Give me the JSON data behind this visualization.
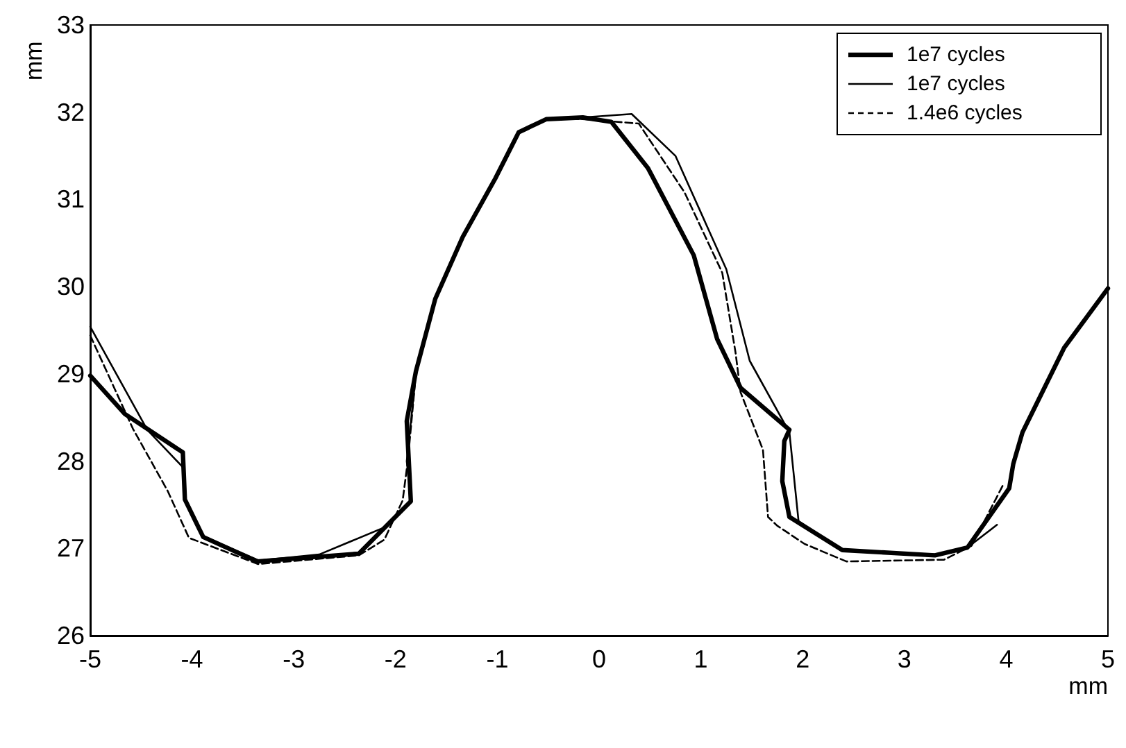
{
  "chart_data": {
    "type": "line",
    "xlabel": "mm",
    "ylabel": "mm",
    "xlim": [
      -5,
      5
    ],
    "xticks": [
      -5,
      -4,
      -3,
      -2,
      -1,
      0,
      1,
      2,
      3,
      4,
      5
    ],
    "ylim": [
      26,
      33
    ],
    "yticks": [
      26,
      27,
      28,
      29,
      30,
      31,
      32,
      33
    ],
    "grid": false,
    "legend": "top right",
    "marker": "none",
    "series": [
      {
        "name": "1e7 cycles",
        "color": "#000000",
        "line_style": "solid",
        "x": [
          -5,
          -4.66,
          -4.09,
          -4.07,
          -3.89,
          -3.36,
          -2.36,
          -1.85,
          -1.89,
          -1.8,
          -1.61,
          -1.34,
          -1.02,
          -0.79,
          -0.52,
          -0.16,
          0.12,
          0.48,
          0.93,
          1.16,
          1.39,
          1.87,
          1.82,
          1.8,
          1.87,
          2.39,
          3.3,
          3.62,
          4.03,
          4.07,
          4.16,
          4.57,
          5
        ],
        "values": [
          28.98,
          28.54,
          28.1,
          27.56,
          27.13,
          26.85,
          26.94,
          27.54,
          28.46,
          29.03,
          29.86,
          30.57,
          31.24,
          31.77,
          31.92,
          31.94,
          31.89,
          31.36,
          30.36,
          29.4,
          28.84,
          28.36,
          28.23,
          27.77,
          27.36,
          26.98,
          26.92,
          27.01,
          27.69,
          27.97,
          28.33,
          29.3,
          29.98
        ]
      },
      {
        "name": "1e7 cycles",
        "color": "#000000",
        "line_style": "solid",
        "x": [
          -5,
          -4.44,
          -4.09,
          -4.07,
          -3.89,
          -3.34,
          -2.75,
          -2.11,
          -1.85,
          -1.89,
          -1.8,
          -1.61,
          -1.34,
          -1.02,
          -0.79,
          -0.52,
          -0.16,
          0.32,
          0.75,
          1.25,
          1.48,
          1.87,
          1.96,
          2.39,
          3.3,
          3.62,
          3.91
        ],
        "values": [
          29.54,
          28.36,
          27.93,
          27.58,
          27.14,
          26.86,
          26.93,
          27.24,
          27.55,
          28.0,
          29.0,
          29.86,
          30.57,
          31.24,
          31.77,
          31.92,
          31.94,
          31.98,
          31.5,
          30.2,
          29.15,
          28.33,
          27.31,
          26.98,
          26.93,
          27.01,
          27.27
        ]
      },
      {
        "name": "1.4e6 cycles",
        "color": "#000000",
        "line_style": "dashed",
        "x": [
          -5,
          -4.58,
          -4.24,
          -4.03,
          -3.35,
          -2.36,
          -2.11,
          -1.93,
          -1.88,
          -1.8,
          -1.61,
          -1.34,
          -1.02,
          -0.79,
          -0.52,
          -0.16,
          0.39,
          0.84,
          1.21,
          1.34,
          1.39,
          1.61,
          1.66,
          1.75,
          2.02,
          2.43,
          3.39,
          3.66,
          3.98
        ],
        "values": [
          29.44,
          28.37,
          27.66,
          27.12,
          26.82,
          26.92,
          27.1,
          27.55,
          28.0,
          29.0,
          29.86,
          30.57,
          31.24,
          31.77,
          31.92,
          31.92,
          31.87,
          31.08,
          30.16,
          29.25,
          28.79,
          28.13,
          27.36,
          27.26,
          27.05,
          26.85,
          26.87,
          27.03,
          27.75
        ]
      }
    ]
  }
}
